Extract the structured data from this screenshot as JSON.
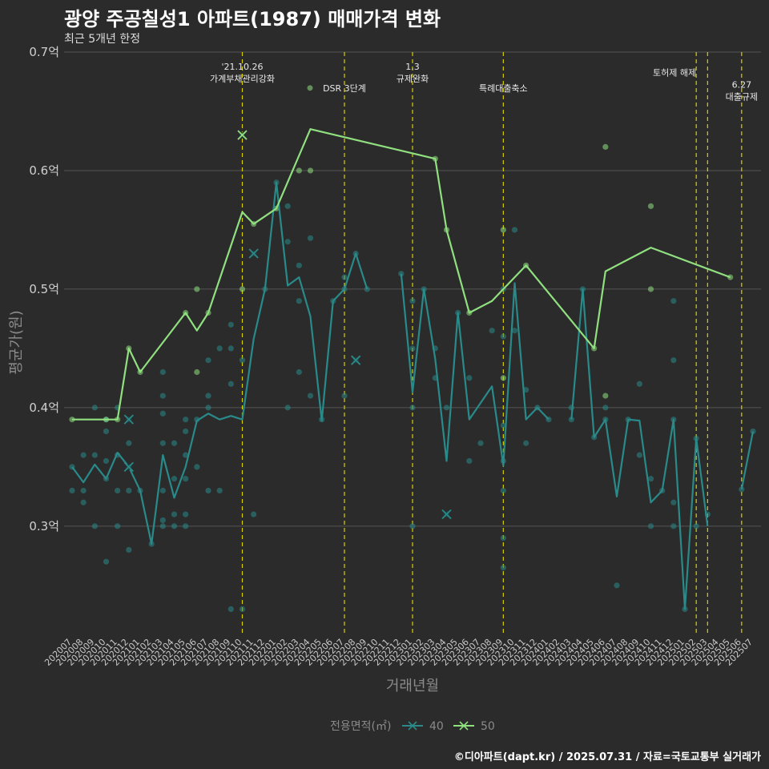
{
  "title": "광양 주공칠성1 아파트(1987) 매매가격 변화",
  "subtitle": "최근 5개년 한정",
  "footer": "©디아파트(dapt.kr) / 2025.07.31 / 자료=국토교통부 실거래가",
  "chart_data": {
    "type": "line",
    "xlabel": "거래년월",
    "ylabel": "평균가(원)",
    "ylim": [
      0.21,
      0.7
    ],
    "y_ticks": [
      {
        "value": 0.3,
        "label": "0.3억"
      },
      {
        "value": 0.4,
        "label": "0.4억"
      },
      {
        "value": 0.5,
        "label": "0.5억"
      },
      {
        "value": 0.6,
        "label": "0.6억"
      },
      {
        "value": 0.7,
        "label": "0.7억"
      }
    ],
    "categories": [
      "202007",
      "202008",
      "202009",
      "202010",
      "202011",
      "202012",
      "202101",
      "202102",
      "202103",
      "202104",
      "202105",
      "202106",
      "202107",
      "202108",
      "202109",
      "202110",
      "202111",
      "202112",
      "202201",
      "202202",
      "202203",
      "202204",
      "202205",
      "202206",
      "202207",
      "202208",
      "202209",
      "202210",
      "202211",
      "202212",
      "202301",
      "202302",
      "202303",
      "202304",
      "202305",
      "202306",
      "202307",
      "202308",
      "202309",
      "202310",
      "202311",
      "202312",
      "202401",
      "202402",
      "202403",
      "202404",
      "202405",
      "202406",
      "202407",
      "202408",
      "202409",
      "202410",
      "202411",
      "202412",
      "202501",
      "202502",
      "202503",
      "202504",
      "202505",
      "202506",
      "202507"
    ],
    "legend_title": "전용면적(㎡)",
    "legend_position": "bottom",
    "series": [
      {
        "name": "40",
        "color": "#2a8a8a",
        "line": [
          [
            "202007",
            0.35
          ],
          [
            "202008",
            0.337
          ],
          [
            "202009",
            0.352
          ],
          [
            "202010",
            0.34
          ],
          [
            "202011",
            0.362
          ],
          [
            "202012",
            0.35
          ],
          [
            "202101",
            0.33
          ],
          [
            "202102",
            0.285
          ],
          [
            "202103",
            0.36
          ],
          [
            "202104",
            0.324
          ],
          [
            "202105",
            0.35
          ],
          [
            "202106",
            0.389
          ],
          [
            "202107",
            0.395
          ],
          [
            "202108",
            0.39
          ],
          [
            "202109",
            0.393
          ],
          [
            "202110",
            0.39
          ],
          [
            "202111",
            0.458
          ],
          [
            "202112",
            0.5
          ],
          [
            "202201",
            0.59
          ],
          [
            "202202",
            0.503
          ],
          [
            "202203",
            0.51
          ],
          [
            "202204",
            0.477
          ],
          [
            "202205",
            0.389
          ],
          [
            "202206",
            0.49
          ],
          [
            "202207",
            0.5
          ],
          [
            "202208",
            0.53
          ],
          [
            "202209",
            0.5
          ],
          null,
          [
            "202212",
            0.513
          ],
          [
            "202301",
            0.413
          ],
          [
            "202302",
            0.5
          ],
          [
            "202303",
            0.441
          ],
          [
            "202304",
            0.355
          ],
          [
            "202305",
            0.48
          ],
          [
            "202306",
            0.39
          ],
          [
            "202308",
            0.418
          ],
          [
            "202309",
            0.351
          ],
          [
            "202310",
            0.505
          ],
          [
            "202311",
            0.39
          ],
          [
            "202312",
            0.4
          ],
          [
            "202401",
            0.39
          ],
          null,
          [
            "202403",
            0.39
          ],
          [
            "202404",
            0.5
          ],
          [
            "202405",
            0.375
          ],
          [
            "202406",
            0.39
          ],
          [
            "202407",
            0.325
          ],
          [
            "202408",
            0.39
          ],
          [
            "202409",
            0.389
          ],
          [
            "202410",
            0.32
          ],
          [
            "202411",
            0.33
          ],
          [
            "202412",
            0.39
          ],
          [
            "202501",
            0.23
          ],
          [
            "202502",
            0.374
          ],
          [
            "202503",
            0.3
          ],
          null,
          [
            "202506",
            0.331
          ],
          [
            "202507",
            0.38
          ]
        ],
        "points": [
          [
            "202007",
            0.35
          ],
          [
            "202007",
            0.33
          ],
          [
            "202008",
            0.36
          ],
          [
            "202008",
            0.33
          ],
          [
            "202008",
            0.32
          ],
          [
            "202009",
            0.36
          ],
          [
            "202009",
            0.3
          ],
          [
            "202009",
            0.4
          ],
          [
            "202010",
            0.34
          ],
          [
            "202010",
            0.38
          ],
          [
            "202010",
            0.27
          ],
          [
            "202010",
            0.39
          ],
          [
            "202010",
            0.355
          ],
          [
            "202011",
            0.4
          ],
          [
            "202011",
            0.3
          ],
          [
            "202011",
            0.36
          ],
          [
            "202011",
            0.33
          ],
          [
            "202012",
            0.37
          ],
          [
            "202012",
            0.33
          ],
          [
            "202012",
            0.28
          ],
          [
            "202012",
            0.35
          ],
          [
            "202012",
            0.39
          ],
          [
            "202101",
            0.33
          ],
          [
            "202102",
            0.285
          ],
          [
            "202103",
            0.43
          ],
          [
            "202103",
            0.41
          ],
          [
            "202103",
            0.395
          ],
          [
            "202103",
            0.37
          ],
          [
            "202103",
            0.33
          ],
          [
            "202103",
            0.305
          ],
          [
            "202103",
            0.3
          ],
          [
            "202104",
            0.37
          ],
          [
            "202104",
            0.34
          ],
          [
            "202104",
            0.31
          ],
          [
            "202104",
            0.3
          ],
          [
            "202105",
            0.39
          ],
          [
            "202105",
            0.38
          ],
          [
            "202105",
            0.36
          ],
          [
            "202105",
            0.34
          ],
          [
            "202105",
            0.31
          ],
          [
            "202105",
            0.3
          ],
          [
            "202106",
            0.35
          ],
          [
            "202106",
            0.39
          ],
          [
            "202107",
            0.44
          ],
          [
            "202107",
            0.41
          ],
          [
            "202107",
            0.4
          ],
          [
            "202107",
            0.33
          ],
          [
            "202108",
            0.45
          ],
          [
            "202108",
            0.33
          ],
          [
            "202109",
            0.47
          ],
          [
            "202109",
            0.45
          ],
          [
            "202109",
            0.42
          ],
          [
            "202109",
            0.23
          ],
          [
            "202110",
            0.44
          ],
          [
            "202110",
            0.23
          ],
          [
            "202111",
            0.53
          ],
          [
            "202111",
            0.31
          ],
          [
            "202112",
            0.5
          ],
          [
            "202201",
            0.59
          ],
          [
            "202202",
            0.57
          ],
          [
            "202202",
            0.54
          ],
          [
            "202202",
            0.4
          ],
          [
            "202203",
            0.52
          ],
          [
            "202203",
            0.49
          ],
          [
            "202203",
            0.43
          ],
          [
            "202204",
            0.543
          ],
          [
            "202204",
            0.41
          ],
          [
            "202205",
            0.39
          ],
          [
            "202206",
            0.49
          ],
          [
            "202207",
            0.51
          ],
          [
            "202207",
            0.41
          ],
          [
            "202207",
            0.5
          ],
          [
            "202208",
            0.53
          ],
          [
            "202208",
            0.44
          ],
          [
            "202209",
            0.5
          ],
          [
            "202212",
            0.513
          ],
          [
            "202301",
            0.49
          ],
          [
            "202301",
            0.45
          ],
          [
            "202301",
            0.4
          ],
          [
            "202301",
            0.3
          ],
          [
            "202302",
            0.5
          ],
          [
            "202303",
            0.45
          ],
          [
            "202303",
            0.425
          ],
          [
            "202304",
            0.4
          ],
          [
            "202304",
            0.31
          ],
          [
            "202305",
            0.48
          ],
          [
            "202306",
            0.425
          ],
          [
            "202306",
            0.355
          ],
          [
            "202307",
            0.37
          ],
          [
            "202308",
            0.465
          ],
          [
            "202309",
            0.5
          ],
          [
            "202309",
            0.46
          ],
          [
            "202309",
            0.385
          ],
          [
            "202309",
            0.355
          ],
          [
            "202309",
            0.33
          ],
          [
            "202309",
            0.29
          ],
          [
            "202309",
            0.265
          ],
          [
            "202310",
            0.465
          ],
          [
            "202310",
            0.55
          ],
          [
            "202311",
            0.415
          ],
          [
            "202311",
            0.37
          ],
          [
            "202312",
            0.4
          ],
          [
            "202401",
            0.39
          ],
          [
            "202403",
            0.4
          ],
          [
            "202403",
            0.39
          ],
          [
            "202404",
            0.5
          ],
          [
            "202405",
            0.375
          ],
          [
            "202406",
            0.4
          ],
          [
            "202406",
            0.39
          ],
          [
            "202407",
            0.25
          ],
          [
            "202408",
            0.39
          ],
          [
            "202409",
            0.42
          ],
          [
            "202409",
            0.36
          ],
          [
            "202410",
            0.34
          ],
          [
            "202410",
            0.3
          ],
          [
            "202411",
            0.33
          ],
          [
            "202412",
            0.49
          ],
          [
            "202412",
            0.44
          ],
          [
            "202412",
            0.39
          ],
          [
            "202412",
            0.32
          ],
          [
            "202412",
            0.3
          ],
          [
            "202501",
            0.23
          ],
          [
            "202502",
            0.374
          ],
          [
            "202502",
            0.3
          ],
          [
            "202503",
            0.31
          ],
          [
            "202506",
            0.331
          ],
          [
            "202507",
            0.38
          ]
        ],
        "cross_markers": [
          [
            "202012",
            0.39
          ],
          [
            "202012",
            0.35
          ],
          [
            "202111",
            0.53
          ],
          [
            "202208",
            0.44
          ],
          [
            "202304",
            0.31
          ]
        ]
      },
      {
        "name": "50",
        "color": "#90e07f",
        "line": [
          [
            "202007",
            0.39
          ],
          [
            "202010",
            0.39
          ],
          [
            "202011",
            0.39
          ],
          [
            "202012",
            0.45
          ],
          [
            "202101",
            0.43
          ],
          [
            "202105",
            0.48
          ],
          [
            "202106",
            0.465
          ],
          [
            "202107",
            0.48
          ],
          [
            "202110",
            0.565
          ],
          [
            "202111",
            0.555
          ],
          [
            "202201",
            0.568
          ],
          [
            "202204",
            0.635
          ],
          [
            "202303",
            0.61
          ],
          [
            "202304",
            0.55
          ],
          [
            "202306",
            0.48
          ],
          [
            "202308",
            0.49
          ],
          [
            "202309",
            0.5
          ],
          [
            "202311",
            0.52
          ],
          [
            "202405",
            0.45
          ],
          [
            "202406",
            0.515
          ],
          [
            "202410",
            0.535
          ],
          [
            "202505",
            0.51
          ]
        ],
        "points": [
          [
            "202007",
            0.39
          ],
          [
            "202010",
            0.39
          ],
          [
            "202011",
            0.39
          ],
          [
            "202012",
            0.45
          ],
          [
            "202101",
            0.43
          ],
          [
            "202105",
            0.48
          ],
          [
            "202106",
            0.5
          ],
          [
            "202106",
            0.43
          ],
          [
            "202107",
            0.48
          ],
          [
            "202110",
            0.5
          ],
          [
            "202111",
            0.555
          ],
          [
            "202201",
            0.568
          ],
          [
            "202203",
            0.6
          ],
          [
            "202204",
            0.6
          ],
          [
            "202303",
            0.61
          ],
          [
            "202304",
            0.55
          ],
          [
            "202306",
            0.48
          ],
          [
            "202309",
            0.55
          ],
          [
            "202309",
            0.425
          ],
          [
            "202311",
            0.52
          ],
          [
            "202405",
            0.45
          ],
          [
            "202406",
            0.62
          ],
          [
            "202406",
            0.41
          ],
          [
            "202410",
            0.57
          ],
          [
            "202410",
            0.5
          ],
          [
            "202505",
            0.51
          ]
        ],
        "cross_markers": [
          [
            "202110",
            0.63
          ]
        ]
      }
    ],
    "events": [
      {
        "x": "202110",
        "label": "'21.10.26\n가계부채관리강화",
        "label_y": 0.685
      },
      {
        "x": "202207",
        "label": "DSR 3단계",
        "label_y": 0.667,
        "marker": true
      },
      {
        "x": "202301",
        "label": "1.3\n규제완화",
        "label_y": 0.685
      },
      {
        "x": "202309",
        "label": "특례대출축소",
        "label_y": 0.667
      },
      {
        "x": "202502",
        "label": "토허제 해제",
        "label_y": 0.68,
        "anchor": "end"
      },
      {
        "x": "202503",
        "label": "",
        "label_y": 0.68
      },
      {
        "x": "202506",
        "label": "6.27\n대출규제",
        "label_y": 0.67
      }
    ]
  }
}
